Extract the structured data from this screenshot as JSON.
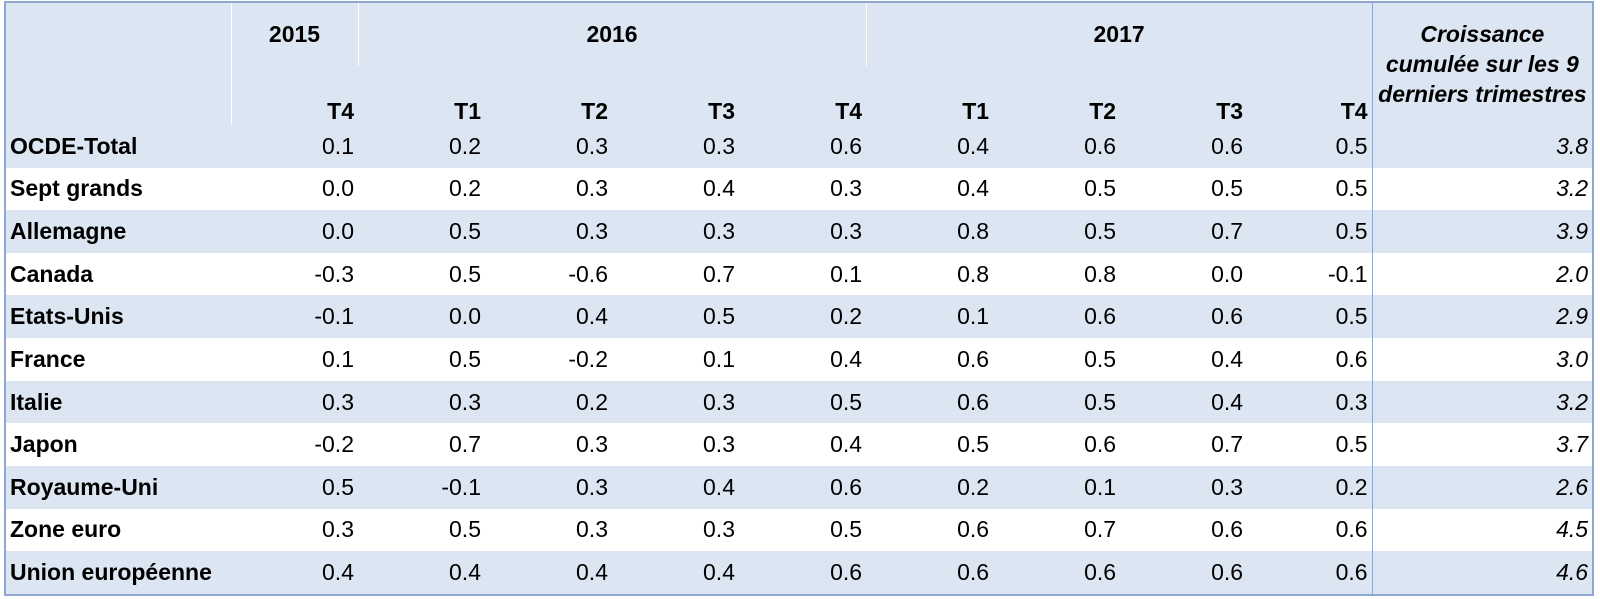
{
  "chart_data": {
    "type": "table",
    "year_groups": [
      {
        "year": "2015",
        "quarters": [
          "T4"
        ]
      },
      {
        "year": "2016",
        "quarters": [
          "T1",
          "T2",
          "T3",
          "T4"
        ]
      },
      {
        "year": "2017",
        "quarters": [
          "T1",
          "T2",
          "T3",
          "T4"
        ]
      }
    ],
    "growth_header": "Croissance cumulée sur les 9 derniers trimestres",
    "rows": [
      {
        "label": "OCDE-Total",
        "indent": false,
        "values": [
          "0.1",
          "0.2",
          "0.3",
          "0.3",
          "0.6",
          "0.4",
          "0.6",
          "0.6",
          "0.5"
        ],
        "growth": "3.8"
      },
      {
        "label": "Sept grands",
        "indent": false,
        "values": [
          "0.0",
          "0.2",
          "0.3",
          "0.4",
          "0.3",
          "0.4",
          "0.5",
          "0.5",
          "0.5"
        ],
        "growth": "3.2"
      },
      {
        "label": "Allemagne",
        "indent": true,
        "values": [
          "0.0",
          "0.5",
          "0.3",
          "0.3",
          "0.3",
          "0.8",
          "0.5",
          "0.7",
          "0.5"
        ],
        "growth": "3.9"
      },
      {
        "label": "Canada",
        "indent": true,
        "values": [
          "-0.3",
          "0.5",
          "-0.6",
          "0.7",
          "0.1",
          "0.8",
          "0.8",
          "0.0",
          "-0.1"
        ],
        "growth": "2.0"
      },
      {
        "label": "Etats-Unis",
        "indent": true,
        "values": [
          "-0.1",
          "0.0",
          "0.4",
          "0.5",
          "0.2",
          "0.1",
          "0.6",
          "0.6",
          "0.5"
        ],
        "growth": "2.9"
      },
      {
        "label": "France",
        "indent": true,
        "values": [
          "0.1",
          "0.5",
          "-0.2",
          "0.1",
          "0.4",
          "0.6",
          "0.5",
          "0.4",
          "0.6"
        ],
        "growth": "3.0"
      },
      {
        "label": "Italie",
        "indent": true,
        "values": [
          "0.3",
          "0.3",
          "0.2",
          "0.3",
          "0.5",
          "0.6",
          "0.5",
          "0.4",
          "0.3"
        ],
        "growth": "3.2"
      },
      {
        "label": "Japon",
        "indent": true,
        "values": [
          "-0.2",
          "0.7",
          "0.3",
          "0.3",
          "0.4",
          "0.5",
          "0.6",
          "0.7",
          "0.5"
        ],
        "growth": "3.7"
      },
      {
        "label": "Royaume-Uni",
        "indent": true,
        "values": [
          "0.5",
          "-0.1",
          "0.3",
          "0.4",
          "0.6",
          "0.2",
          "0.1",
          "0.3",
          "0.2"
        ],
        "growth": "2.6"
      },
      {
        "label": "Zone euro",
        "indent": false,
        "values": [
          "0.3",
          "0.5",
          "0.3",
          "0.3",
          "0.5",
          "0.6",
          "0.7",
          "0.6",
          "0.6"
        ],
        "growth": "4.5"
      },
      {
        "label": "Union européenne",
        "indent": false,
        "values": [
          "0.4",
          "0.4",
          "0.4",
          "0.4",
          "0.6",
          "0.6",
          "0.6",
          "0.6",
          "0.6"
        ],
        "growth": "4.6"
      }
    ],
    "colors": {
      "band": "#dce6f2",
      "border": "#8fa7cf"
    }
  }
}
